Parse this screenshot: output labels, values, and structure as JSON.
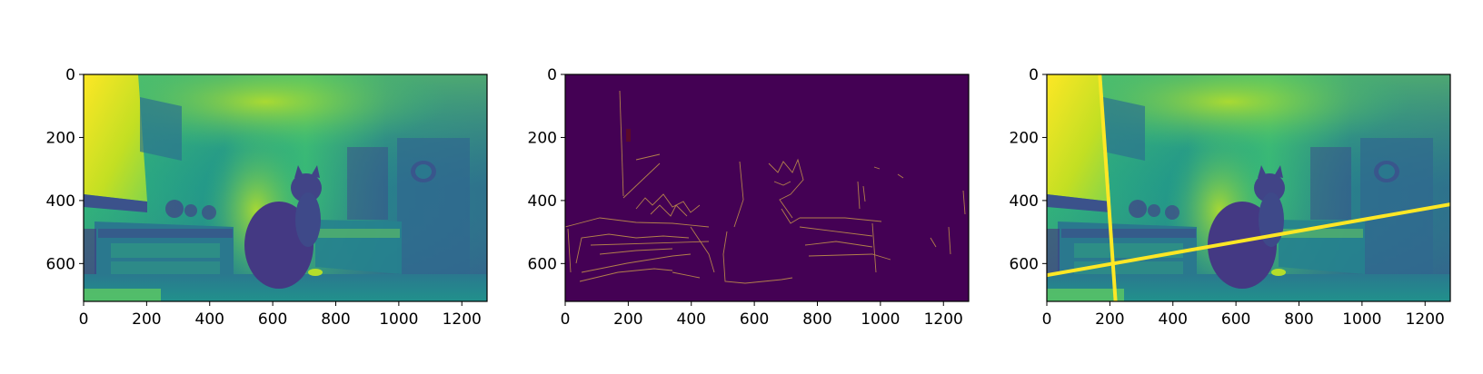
{
  "chart_data": [
    {
      "type": "image",
      "colormap": "viridis",
      "image_size": [
        1280,
        720
      ],
      "xlim": [
        0,
        1280
      ],
      "ylim": [
        720,
        0
      ],
      "xticks": [
        0,
        200,
        400,
        600,
        800,
        1000,
        1200
      ],
      "yticks": [
        0,
        200,
        400,
        600
      ]
    },
    {
      "type": "image",
      "colormap": "viridis",
      "content": "edge map",
      "image_size": [
        1280,
        720
      ],
      "xlim": [
        0,
        1280
      ],
      "ylim": [
        720,
        0
      ],
      "xticks": [
        0,
        200,
        400,
        600,
        800,
        1000,
        1200
      ],
      "yticks": [
        0,
        200,
        400,
        600
      ],
      "marker_color": "#5a0a2a"
    },
    {
      "type": "image",
      "colormap": "viridis",
      "image_size": [
        1280,
        720
      ],
      "xlim": [
        0,
        1280
      ],
      "ylim": [
        720,
        0
      ],
      "xticks": [
        0,
        200,
        400,
        600,
        800,
        1000,
        1200
      ],
      "yticks": [
        0,
        200,
        400,
        600
      ],
      "overlay_color": "#fde725",
      "lines": [
        {
          "x": [
            168,
            218
          ],
          "y": [
            0,
            720
          ]
        },
        {
          "x": [
            0,
            1280
          ],
          "y": [
            637,
            412
          ]
        }
      ]
    }
  ]
}
